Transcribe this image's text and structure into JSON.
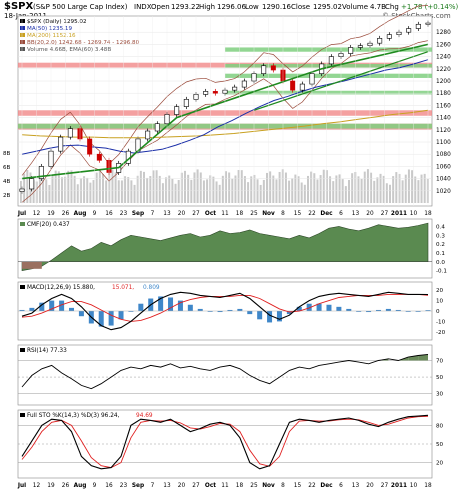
{
  "header": {
    "symbol": "$SPX",
    "name": "(S&P 500 Large Cap Index)",
    "exchange": "INDX",
    "date": "18-Jan-2011",
    "open_label": "Open",
    "open": "1293.22",
    "high_label": "High",
    "high": "1296.06",
    "low_label": "Low",
    "low": "1290.16",
    "close_label": "Close",
    "close": "1295.02",
    "volume_label": "Volume",
    "volume": "4.7B",
    "chg_label": "Chg",
    "chg": "+1.78 (+0.14%)",
    "watermark": "© StockCharts.com"
  },
  "colors": {
    "up": "#000000",
    "down": "#cc0000",
    "ma50": "#1a2ea8",
    "ma200": "#c8a020",
    "bb": "#9a4a3a",
    "trend": "#1f8a1f",
    "zone_red": "#f08080",
    "zone_green": "#7fcf7f",
    "volume_bar": "#c9c9c9",
    "cmf_fill": "#5a8a50",
    "cmf_neg": "#9a7060",
    "macd_line": "#000000",
    "signal_line": "#e02020",
    "hist": "#3f87c9",
    "rsi_fill": "#6a8a5a",
    "sto_k": "#000000",
    "sto_d": "#e02020"
  },
  "chart_data": [
    {
      "panel": "price",
      "type": "candlestick",
      "legend": [
        "$SPX (Daily) 1295.02",
        "MA(50) 1235.19",
        "MA(200) 1152.16",
        "BB(20,2.0) 1242.68 - 1269.74 - 1296.80",
        "Volume 4.66B, EMA(60) 3.48B"
      ],
      "ylim": [
        1000,
        1300
      ],
      "right_ticks": [
        1020,
        1040,
        1060,
        1080,
        1100,
        1120,
        1140,
        1160,
        1180,
        1200,
        1220,
        1240,
        1260,
        1280
      ],
      "volume_ticks": [
        "8B",
        "6B",
        "4B",
        "2B"
      ],
      "x_tick_labels": [
        "Jul",
        "12",
        "19",
        "26",
        "Aug",
        "9",
        "16",
        "23",
        "Sep",
        "7",
        "13",
        "20",
        "27",
        "Oct",
        "11",
        "18",
        "25",
        "Nov",
        "8",
        "15",
        "22",
        "Dec",
        "6",
        "13",
        "20",
        "27",
        "2011",
        "10",
        "18"
      ],
      "close_path": [
        1023,
        1040,
        1060,
        1085,
        1108,
        1122,
        1105,
        1080,
        1070,
        1050,
        1065,
        1085,
        1105,
        1118,
        1130,
        1145,
        1158,
        1170,
        1178,
        1183,
        1180,
        1185,
        1190,
        1200,
        1212,
        1225,
        1218,
        1200,
        1185,
        1195,
        1212,
        1228,
        1240,
        1245,
        1255,
        1258,
        1262,
        1270,
        1276,
        1280,
        1286,
        1293,
        1295
      ],
      "ma50_path": [
        1080,
        1085,
        1090,
        1094,
        1095,
        1092,
        1090,
        1085,
        1082,
        1085,
        1088,
        1095,
        1103,
        1112,
        1125,
        1135,
        1147,
        1158,
        1168,
        1175,
        1183,
        1190,
        1195,
        1200,
        1206,
        1212,
        1218,
        1222,
        1228,
        1235
      ],
      "ma200_path": [
        1112,
        1110,
        1109,
        1108,
        1108,
        1107,
        1107,
        1107,
        1108,
        1109,
        1110,
        1112,
        1114,
        1117,
        1120,
        1123,
        1126,
        1130,
        1133,
        1137,
        1141,
        1145,
        1148,
        1152
      ],
      "support_trend": [
        [
          0,
          1040
        ],
        [
          10,
          1058
        ],
        [
          16,
          1140
        ],
        [
          31,
          1220
        ],
        [
          42,
          1260
        ]
      ],
      "upper_trend": [
        [
          24,
          1152
        ],
        [
          42,
          1248
        ]
      ],
      "red_zones": [
        [
          1120,
          1130
        ],
        [
          1143,
          1152
        ],
        [
          1222,
          1230
        ]
      ],
      "green_zones": [
        [
          1122,
          1130
        ],
        [
          1178,
          1184
        ],
        [
          1205,
          1212
        ],
        [
          1222,
          1228
        ],
        [
          1248,
          1255
        ]
      ]
    },
    {
      "panel": "cmf",
      "type": "area",
      "legend": "CMF(20) 0.437",
      "ylim": [
        -0.15,
        0.45
      ],
      "right_ticks": [
        "0.4",
        "0.3",
        "0.2",
        "0.1",
        "0.0",
        "-0.1"
      ],
      "values": [
        -0.1,
        -0.08,
        -0.05,
        0.02,
        0.1,
        0.18,
        0.12,
        0.15,
        0.22,
        0.18,
        0.25,
        0.3,
        0.28,
        0.26,
        0.24,
        0.27,
        0.3,
        0.32,
        0.28,
        0.3,
        0.35,
        0.32,
        0.33,
        0.36,
        0.32,
        0.3,
        0.28,
        0.26,
        0.3,
        0.27,
        0.32,
        0.38,
        0.4,
        0.37,
        0.35,
        0.38,
        0.42,
        0.4,
        0.38,
        0.39,
        0.41,
        0.437
      ]
    },
    {
      "panel": "macd",
      "type": "line",
      "legend_prefix": "MACD(12,26,9)",
      "macd_value": "15.880",
      "signal_value": "15.071",
      "hist_value": "0.809",
      "ylim": [
        -25,
        25
      ],
      "right_ticks": [
        "20",
        "10",
        "0",
        "-10",
        "-20"
      ],
      "macd": [
        -5,
        -2,
        6,
        12,
        16,
        12,
        4,
        -6,
        -14,
        -18,
        -16,
        -10,
        -2,
        6,
        12,
        16,
        18,
        17,
        15,
        14,
        13,
        15,
        17,
        12,
        4,
        -4,
        -8,
        -4,
        4,
        10,
        14,
        16,
        17,
        16,
        15,
        14,
        16,
        18,
        17,
        16,
        16,
        15.9
      ],
      "signal": [
        -6,
        -5,
        -2,
        2,
        6,
        9,
        9,
        6,
        1,
        -4,
        -8,
        -10,
        -9,
        -6,
        -2,
        3,
        8,
        11,
        13,
        14,
        14,
        14,
        15,
        15,
        12,
        7,
        2,
        -1,
        0,
        3,
        7,
        10,
        13,
        14,
        15,
        15,
        15,
        16,
        16,
        16,
        16,
        15.1
      ]
    },
    {
      "panel": "rsi",
      "type": "line",
      "legend": "RSI(14) 77.33",
      "ylim": [
        20,
        85
      ],
      "right_ticks": [
        "70",
        "50",
        "30"
      ],
      "values": [
        38,
        52,
        60,
        64,
        55,
        48,
        40,
        36,
        42,
        50,
        58,
        62,
        60,
        64,
        62,
        66,
        61,
        63,
        60,
        58,
        62,
        64,
        60,
        52,
        46,
        42,
        50,
        58,
        62,
        60,
        64,
        66,
        68,
        70,
        68,
        66,
        70,
        72,
        70,
        74,
        76,
        77.33
      ]
    },
    {
      "panel": "stochastic",
      "type": "line",
      "legend_prefix": "Full STO %K(14,3) %D(3)",
      "k_value": "96.24",
      "d_value": "94.69",
      "ylim": [
        0,
        100
      ],
      "right_ticks": [
        "80",
        "50",
        "20"
      ],
      "k": [
        30,
        55,
        80,
        90,
        88,
        70,
        30,
        15,
        10,
        12,
        30,
        80,
        90,
        88,
        85,
        90,
        80,
        70,
        75,
        82,
        85,
        80,
        60,
        20,
        10,
        15,
        50,
        85,
        90,
        88,
        85,
        88,
        90,
        92,
        88,
        82,
        78,
        85,
        90,
        94,
        95,
        96.24
      ],
      "d": [
        25,
        45,
        70,
        85,
        88,
        80,
        55,
        28,
        15,
        12,
        20,
        60,
        85,
        88,
        87,
        88,
        84,
        76,
        74,
        78,
        83,
        82,
        70,
        40,
        18,
        14,
        30,
        70,
        87,
        88,
        87,
        87,
        89,
        90,
        89,
        85,
        80,
        82,
        87,
        92,
        94,
        94.69
      ]
    }
  ]
}
